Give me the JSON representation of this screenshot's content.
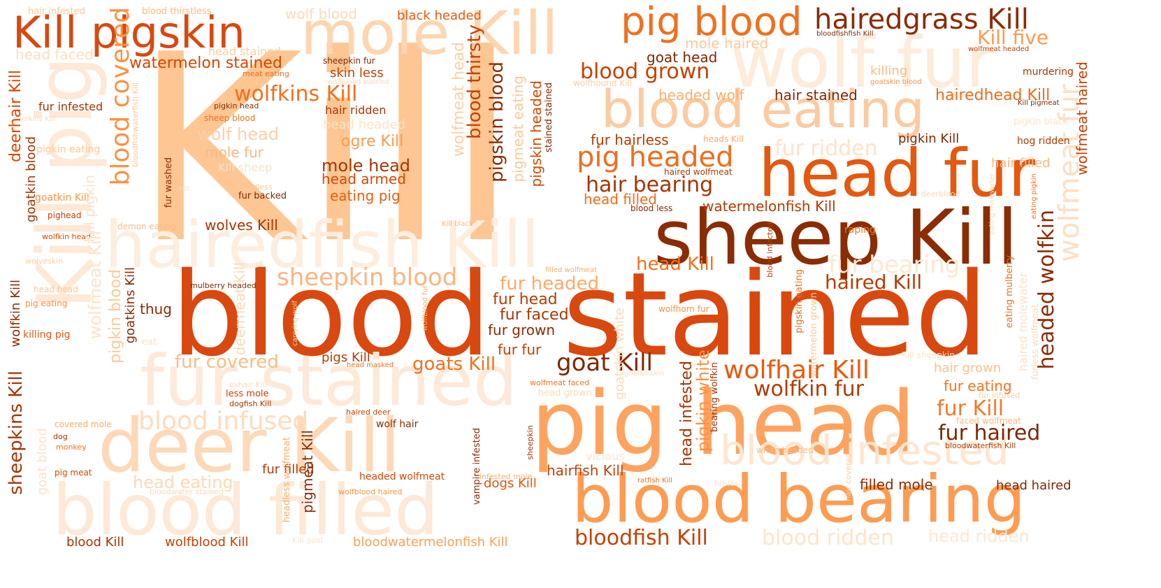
{
  "words": [
    {
      "text": "Kill",
      "color": "#fdc692"
    },
    {
      "text": "blood",
      "color": "#d9480f"
    },
    {
      "text": "stained",
      "color": "#d9480f"
    },
    {
      "text": "pig head",
      "color": "#fda35f"
    },
    {
      "text": "sheep Kill",
      "color": "#8a2c04"
    },
    {
      "text": "head fur",
      "color": "#e5580e"
    },
    {
      "text": "blood eating",
      "color": "#fdcaa0"
    },
    {
      "text": "blood bearing",
      "color": "#fd9c51"
    },
    {
      "text": "blood filled",
      "color": "#fee8d6"
    },
    {
      "text": "deer Kill",
      "color": "#fdd9b8"
    },
    {
      "text": "fur stained",
      "color": "#fee9d8"
    },
    {
      "text": "hairedfish Kill",
      "color": "#feeddd"
    },
    {
      "text": "wolf fur",
      "color": "#feebd9"
    },
    {
      "text": "mole Kill",
      "color": "#fdd6b0"
    },
    {
      "text": "Kill pig",
      "color": "#fee9d6"
    },
    {
      "text": "Kill pigskin",
      "color": "#d9480f"
    },
    {
      "text": "pig blood",
      "color": "#f0701e"
    },
    {
      "text": "hairedgrass Kill",
      "color": "#8a2c04"
    },
    {
      "text": "Kill five",
      "color": "#fd9a4f"
    },
    {
      "text": "blood infested",
      "color": "#fee6cf"
    },
    {
      "text": "blood infused",
      "color": "#fedcbc"
    },
    {
      "text": "blood covered",
      "color": "#fd9142"
    },
    {
      "text": "blood grown",
      "color": "#c44103"
    },
    {
      "text": "pig headed",
      "color": "#f06d1c"
    },
    {
      "text": "hair bearing",
      "color": "#a43503"
    },
    {
      "text": "sheepkin blood",
      "color": "#fdb47d"
    },
    {
      "text": "goat Kill",
      "color": "#7f2704"
    },
    {
      "text": "wolfhair Kill",
      "color": "#e8590c"
    },
    {
      "text": "wolfkin fur",
      "color": "#b33b02"
    },
    {
      "text": "fur haired",
      "color": "#7f2704"
    },
    {
      "text": "fur Kill",
      "color": "#f57a27"
    },
    {
      "text": "headed wolfkin",
      "color": "#8a2c04"
    },
    {
      "text": "wolfmeat fur",
      "color": "#fedfc2"
    },
    {
      "text": "fur ridden",
      "color": "#fee3c8"
    },
    {
      "text": "fur bearing",
      "color": "#fee8d2"
    },
    {
      "text": "blood ridden",
      "color": "#fee4ca"
    },
    {
      "text": "head ridden",
      "color": "#fee8d2"
    },
    {
      "text": "bloodfish Kill",
      "color": "#c44103"
    },
    {
      "text": "fur covered",
      "color": "#fdbb83"
    },
    {
      "text": "head eating",
      "color": "#fed8b6"
    },
    {
      "text": "wolfkins Kill",
      "color": "#f26f1d"
    },
    {
      "text": "wolf head",
      "color": "#fdd0a5"
    },
    {
      "text": "mole fur",
      "color": "#fdb77e"
    },
    {
      "text": "watermelon stained",
      "color": "#d54601"
    },
    {
      "text": "head stained",
      "color": "#fdd0a2"
    },
    {
      "text": "head faced",
      "color": "#fedfc1"
    },
    {
      "text": "wolf blood",
      "color": "#fedab9"
    },
    {
      "text": "black headed",
      "color": "#e5580e"
    },
    {
      "text": "hair filled",
      "color": "#fdb77f"
    },
    {
      "text": "haired Kill",
      "color": "#b83c02"
    },
    {
      "text": "head Kill",
      "color": "#f36f1c"
    },
    {
      "text": "fur headed",
      "color": "#fdaa6a"
    },
    {
      "text": "fur head",
      "color": "#b83c02"
    },
    {
      "text": "fur faced",
      "color": "#a83703"
    },
    {
      "text": "fur grown",
      "color": "#8a2c04"
    },
    {
      "text": "fur fur",
      "color": "#c44103"
    },
    {
      "text": "goats Kill",
      "color": "#f36f1c"
    },
    {
      "text": "pigs Kill",
      "color": "#b83c02"
    },
    {
      "text": "mole head",
      "color": "#a43503"
    },
    {
      "text": "head armed",
      "color": "#d84801"
    },
    {
      "text": "eating pig",
      "color": "#e95e0d"
    },
    {
      "text": "ogre Kill",
      "color": "#fd9a4e"
    },
    {
      "text": "skin less",
      "color": "#c44103"
    },
    {
      "text": "hair ridden",
      "color": "#a43503"
    },
    {
      "text": "hair stained",
      "color": "#7f2704"
    },
    {
      "text": "headed wolf",
      "color": "#fdae6b"
    },
    {
      "text": "hairedhead Kill",
      "color": "#f06a17"
    },
    {
      "text": "fur hairless",
      "color": "#b33b02"
    },
    {
      "text": "watermelonfish Kill",
      "color": "#b33b02"
    },
    {
      "text": "head filled",
      "color": "#f26c1a"
    },
    {
      "text": "goat head",
      "color": "#7f2704"
    },
    {
      "text": "mole haired",
      "color": "#fdc997"
    },
    {
      "text": "wolves Kill",
      "color": "#a43503"
    },
    {
      "text": "thug",
      "color": "#8a2c04"
    },
    {
      "text": "fur filled",
      "color": "#b33b02"
    },
    {
      "text": "dogs Kill",
      "color": "#e35409"
    },
    {
      "text": "hairfish Kill",
      "color": "#c44103"
    },
    {
      "text": "filled mole",
      "color": "#8a2c04"
    },
    {
      "text": "head haired",
      "color": "#7f2704"
    },
    {
      "text": "fur eating",
      "color": "#f4711f"
    },
    {
      "text": "hair grown",
      "color": "#fdc08d"
    },
    {
      "text": "wolf hair",
      "color": "#8a2c04"
    },
    {
      "text": "headed wolfmeat",
      "color": "#d84801"
    },
    {
      "text": "blood Kill",
      "color": "#a43503"
    },
    {
      "text": "wolfblood Kill",
      "color": "#c44103"
    },
    {
      "text": "bloodwatermelonfish Kill",
      "color": "#fd9f56"
    },
    {
      "text": "killing",
      "color": "#fdbd83"
    },
    {
      "text": "murdering",
      "color": "#a43503"
    },
    {
      "text": "hog ridden",
      "color": "#b33b02"
    },
    {
      "text": "pigkin Kill",
      "color": "#7f2704"
    },
    {
      "text": "heads Kill",
      "color": "#fdaa6a"
    },
    {
      "text": "haired wolfmeat",
      "color": "#b33b02"
    },
    {
      "text": "blood less",
      "color": "#8a2c04"
    },
    {
      "text": "raping",
      "color": "#f57622"
    },
    {
      "text": "wolfhorn fur",
      "color": "#fd9243"
    },
    {
      "text": "filled wolfmeat",
      "color": "#fdae6b"
    },
    {
      "text": "white headed",
      "color": "#fdbe85"
    },
    {
      "text": "vicious",
      "color": "#fee5cc"
    },
    {
      "text": "fur infested",
      "color": "#a43503"
    },
    {
      "text": "pigkin head",
      "color": "#8a2c04"
    },
    {
      "text": "sheep blood",
      "color": "#f4711f"
    },
    {
      "text": "pigkin eating",
      "color": "#fdc997"
    },
    {
      "text": "goatkin Kill",
      "color": "#fd9142"
    },
    {
      "text": "pighead",
      "color": "#c44103"
    },
    {
      "text": "demon eating",
      "color": "#fdb97f"
    },
    {
      "text": "wolfkin head",
      "color": "#d84801"
    },
    {
      "text": "wolveskin",
      "color": "#fdd0a2"
    },
    {
      "text": "head head",
      "color": "#fdc997"
    },
    {
      "text": "pig eating",
      "color": "#fd9142"
    },
    {
      "text": "killing pig",
      "color": "#e5580e"
    },
    {
      "text": "mulberry headed",
      "color": "#7f2704"
    },
    {
      "text": "covered mole",
      "color": "#fdab69"
    },
    {
      "text": "dog",
      "color": "#a43503"
    },
    {
      "text": "monkey",
      "color": "#f4711f"
    },
    {
      "text": "pig meat",
      "color": "#d84801"
    },
    {
      "text": "less mole",
      "color": "#c44103"
    },
    {
      "text": "dogfish Kill",
      "color": "#a43503"
    },
    {
      "text": "haired deer",
      "color": "#c44103"
    },
    {
      "text": "head masked",
      "color": "#f4711f"
    },
    {
      "text": "fur backed",
      "color": "#7f2704"
    },
    {
      "text": "Kill sheep",
      "color": "#fee3c8"
    },
    {
      "text": "head headed",
      "color": "#fee3c8"
    },
    {
      "text": "fur headless",
      "color": "#fdc997"
    },
    {
      "text": "meat eating",
      "color": "#f06d1c"
    },
    {
      "text": "sheepkin fur",
      "color": "#7f2704"
    },
    {
      "text": "wolfblood stained",
      "color": "#fdd9b4"
    },
    {
      "text": "blood thirstless",
      "color": "#fdb97f"
    },
    {
      "text": "hair infested",
      "color": "#fdc997"
    },
    {
      "text": "bloodfishfish Kill",
      "color": "#7f2704"
    },
    {
      "text": "wolfmeat headed",
      "color": "#c44103"
    },
    {
      "text": "Kill pigmeat",
      "color": "#7f2704"
    },
    {
      "text": "goatskin blood",
      "color": "#fd9243"
    },
    {
      "text": "pigkin black",
      "color": "#fee3c8"
    },
    {
      "text": "deerkins Kill",
      "color": "#fdd9b4"
    },
    {
      "text": "wolfhound Kill",
      "color": "#fdd0a2"
    },
    {
      "text": "Kill black",
      "color": "#fdb97f"
    },
    {
      "text": "deerblood",
      "color": "#fdd9b4"
    },
    {
      "text": "ratfish Kill",
      "color": "#f06d1c"
    },
    {
      "text": "infested mole",
      "color": "#fdae6b"
    },
    {
      "text": "wolfmeat faced",
      "color": "#f4711f"
    },
    {
      "text": "head grown",
      "color": "#fdd9b4"
    },
    {
      "text": "faced wolfmeat",
      "color": "#fdb97f"
    },
    {
      "text": "fur infused",
      "color": "#fdd0a2"
    },
    {
      "text": "bloodwaterfish Kill",
      "color": "#b33b02"
    },
    {
      "text": "wolfblood haired",
      "color": "#fd9243"
    },
    {
      "text": "bloodwater stained",
      "color": "#fdd9b4"
    },
    {
      "text": "fur less",
      "color": "#fee3c8"
    },
    {
      "text": "eat",
      "color": "#fee3c8"
    },
    {
      "text": "Kill goat",
      "color": "#fee3c8"
    },
    {
      "text": "deerhair Kill",
      "color": "#d84801"
    },
    {
      "text": "goatkin blood",
      "color": "#a43503"
    },
    {
      "text": "Kill pigkin",
      "color": "#fee3c8"
    },
    {
      "text": "wolfmeat Kill",
      "color": "#fee3c8"
    },
    {
      "text": "pigkin blood",
      "color": "#fdc997"
    },
    {
      "text": "goatkins Kill",
      "color": "#8a2c04"
    },
    {
      "text": "sheepkins Kill",
      "color": "#a43503"
    },
    {
      "text": "wolfkin Kill",
      "color": "#8a2c04"
    },
    {
      "text": "goat blood",
      "color": "#fee3c8"
    },
    {
      "text": "bloodfishwaterfish Kill",
      "color": "#fdc997"
    },
    {
      "text": "fur washed",
      "color": "#8a2c04"
    },
    {
      "text": "headless wolfmeat",
      "color": "#fdae6b"
    },
    {
      "text": "pigmeat Kill",
      "color": "#8a2c04"
    },
    {
      "text": "deermeat Kill",
      "color": "#fdd9b4"
    },
    {
      "text": "carrying wolf",
      "color": "#fdd0a2"
    },
    {
      "text": "wolfblood fur",
      "color": "#fdae6b"
    },
    {
      "text": "wolfmeat head",
      "color": "#fdd0a2"
    },
    {
      "text": "blood thirsty",
      "color": "#c44103"
    },
    {
      "text": "pigskin blood",
      "color": "#8a2c04"
    },
    {
      "text": "pigmeat eating",
      "color": "#fdc997"
    },
    {
      "text": "pigskin headed",
      "color": "#d84801"
    },
    {
      "text": "stained stained",
      "color": "#7f2704"
    },
    {
      "text": "vampire infested",
      "color": "#8a2c04"
    },
    {
      "text": "sheepkin",
      "color": "#a43503"
    },
    {
      "text": "goatskin white",
      "color": "#fdd9b4"
    },
    {
      "text": "head infested",
      "color": "#a43503"
    },
    {
      "text": "pigkin white",
      "color": "#fd9142"
    },
    {
      "text": "bearing wolfkin",
      "color": "#a43503"
    },
    {
      "text": "blood infected",
      "color": "#b33b02"
    },
    {
      "text": "molewater grown",
      "color": "#d84801"
    },
    {
      "text": "pigskin eating",
      "color": "#f06d1c"
    },
    {
      "text": "watermelon grown",
      "color": "#fdc997"
    },
    {
      "text": "hair covered",
      "color": "#fdd0a2"
    },
    {
      "text": "eating molewater",
      "color": "#fdd9b4"
    },
    {
      "text": "eating mulberry",
      "color": "#f06d1c"
    },
    {
      "text": "eating pigkin",
      "color": "#f4711f"
    },
    {
      "text": "furless wolfmeat",
      "color": "#fdd9b4"
    },
    {
      "text": "haired molewater",
      "color": "#fee3c8"
    },
    {
      "text": "wolfmeat haired",
      "color": "#c44103"
    },
    {
      "text": "goatkinskin",
      "color": "#fdd9b4"
    },
    {
      "text": "Kill sheepkin",
      "color": "#fee3c8"
    },
    {
      "text": "oxhair Kill",
      "color": "#fdd9b4"
    },
    {
      "text": "rat",
      "color": "#fee3c8"
    }
  ]
}
